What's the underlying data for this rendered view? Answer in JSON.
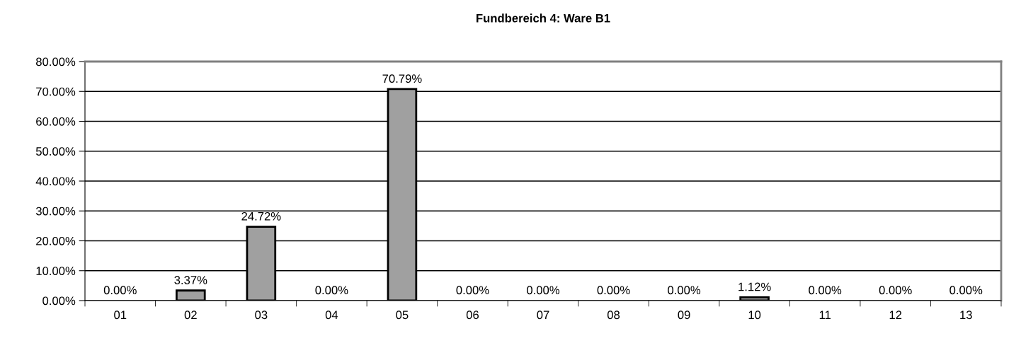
{
  "chart_data": {
    "type": "bar",
    "title": "Fundbereich 4: Ware B1",
    "categories": [
      "01",
      "02",
      "03",
      "04",
      "05",
      "06",
      "07",
      "08",
      "09",
      "10",
      "11",
      "12",
      "13"
    ],
    "values": [
      0,
      3.37,
      24.72,
      0,
      70.79,
      0,
      0,
      0,
      0,
      1.12,
      0,
      0,
      0
    ],
    "value_labels": [
      "0.00%",
      "3.37%",
      "24.72%",
      "0.00%",
      "70.79%",
      "0.00%",
      "0.00%",
      "0.00%",
      "0.00%",
      "1.12%",
      "0.00%",
      "0.00%",
      "0.00%"
    ],
    "color": "#a0a0a0",
    "ylim": [
      0,
      80
    ],
    "yticks": [
      {
        "value": 0,
        "label": "0.00%"
      },
      {
        "value": 10,
        "label": "10.00%"
      },
      {
        "value": 20,
        "label": "20.00%"
      },
      {
        "value": 30,
        "label": "30.00%"
      },
      {
        "value": 40,
        "label": "40.00%"
      },
      {
        "value": 50,
        "label": "50.00%"
      },
      {
        "value": 60,
        "label": "60.00%"
      },
      {
        "value": 70,
        "label": "70.00%"
      },
      {
        "value": 80,
        "label": "80.00%"
      }
    ],
    "grid": "y",
    "legend": false
  }
}
